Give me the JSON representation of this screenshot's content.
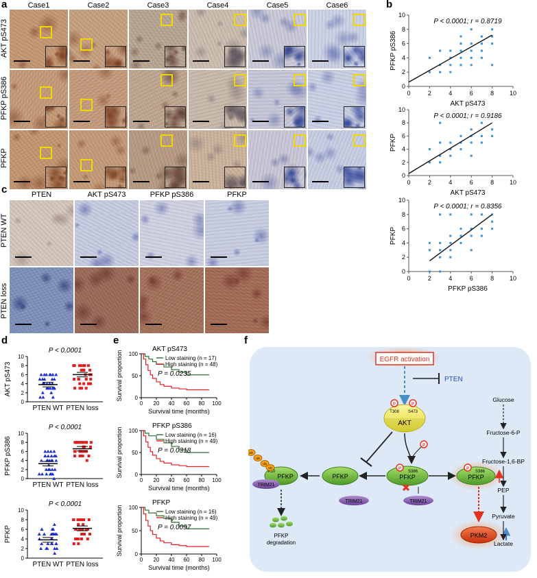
{
  "panels": {
    "a": "a",
    "b": "b",
    "c": "c",
    "d": "d",
    "e": "e",
    "f": "f"
  },
  "panel_a": {
    "columns": [
      "Case1",
      "Case2",
      "Case3",
      "Case4",
      "Case5",
      "Case6"
    ],
    "rows": [
      "AKT pS473",
      "PFKP pS386",
      "PFKP"
    ]
  },
  "panel_c": {
    "columns": [
      "PTEN",
      "AKT pS473",
      "PFKP pS386",
      "PFKP"
    ],
    "rows": [
      "PTEN WT",
      "PTEN loss"
    ]
  },
  "chart_data": [
    {
      "type": "scatter",
      "panel": "b1",
      "xlabel": "AKT pS473",
      "ylabel": "PFKP pS386",
      "annotation": "P < 0.0001; r = 0.8719",
      "xlim": [
        0,
        10
      ],
      "ylim": [
        0,
        10
      ],
      "x": [
        2,
        2,
        3,
        3,
        3,
        4,
        4,
        4,
        4,
        5,
        5,
        5,
        5,
        5,
        6,
        6,
        6,
        6,
        6,
        7,
        7,
        7,
        7,
        8,
        8,
        8,
        8
      ],
      "y": [
        2,
        4,
        2,
        3,
        5,
        2,
        3,
        4,
        5,
        3,
        4,
        5,
        6,
        7,
        3,
        4,
        5,
        6,
        8,
        4,
        5,
        6,
        7,
        3,
        6,
        7,
        8
      ],
      "fit": [
        [
          0,
          0.6
        ],
        [
          8,
          7.2
        ]
      ]
    },
    {
      "type": "scatter",
      "panel": "b2",
      "xlabel": "AKT pS473",
      "ylabel": "PFKP",
      "annotation": "P < 0.0001; r = 0.9186",
      "xlim": [
        0,
        10
      ],
      "ylim": [
        0,
        10
      ],
      "x": [
        2,
        2,
        3,
        3,
        3,
        3,
        4,
        4,
        4,
        5,
        5,
        5,
        6,
        6,
        6,
        6,
        7,
        7,
        7,
        8,
        8
      ],
      "y": [
        2,
        4,
        2,
        3,
        5,
        8,
        3,
        4,
        5,
        4,
        5,
        6,
        3,
        5,
        6,
        7,
        5,
        6,
        8,
        6,
        7
      ],
      "fit": [
        [
          0,
          0.3
        ],
        [
          8,
          8.0
        ]
      ]
    },
    {
      "type": "scatter",
      "panel": "b3",
      "xlabel": "PFKP pS386",
      "ylabel": "PFKP",
      "annotation": "P < 0.0001; r = 0.8356",
      "xlim": [
        0,
        10
      ],
      "ylim": [
        0,
        10
      ],
      "x": [
        2,
        2,
        2,
        3,
        3,
        3,
        3,
        3,
        4,
        4,
        4,
        4,
        4,
        5,
        5,
        5,
        6,
        6,
        6,
        6,
        7,
        7,
        7,
        8,
        8,
        8
      ],
      "y": [
        0,
        3,
        4,
        0,
        2,
        3,
        4,
        8,
        2,
        3,
        4,
        5,
        8,
        4,
        5,
        6,
        3,
        5,
        6,
        8,
        5,
        6,
        8,
        6,
        7,
        8
      ],
      "fit": [
        [
          2,
          1.5
        ],
        [
          8,
          8.0
        ]
      ]
    },
    {
      "type": "scatter",
      "panel": "d1",
      "ylabel": "AKT pS473",
      "annotation": "P < 0.0001",
      "categories": [
        "PTEN WT",
        "PTEN loss"
      ],
      "ylim": [
        0,
        10
      ],
      "yticks": [
        0,
        2,
        4,
        6,
        8,
        10
      ],
      "means": [
        3.8,
        6.0
      ]
    },
    {
      "type": "scatter",
      "panel": "d2",
      "ylabel": "PFKP pS386",
      "annotation": "P < 0.0001",
      "categories": [
        "PTEN WT",
        "PTEN loss"
      ],
      "ylim": [
        0,
        10
      ],
      "yticks": [
        0,
        2,
        4,
        6,
        8,
        10
      ],
      "means": [
        3.3,
        6.6
      ]
    },
    {
      "type": "scatter",
      "panel": "d3",
      "ylabel": "PFKP",
      "annotation": "P < 0.0001",
      "categories": [
        "PTEN WT",
        "PTEN loss"
      ],
      "ylim": [
        0,
        10
      ],
      "yticks": [
        0,
        2,
        4,
        6,
        8,
        10
      ],
      "means": [
        3.8,
        6.2
      ]
    },
    {
      "type": "line",
      "panel": "e1",
      "title": "AKT pS473",
      "xlabel": "Survival time (months)",
      "ylabel": "Survival proportion",
      "annotation": "P = 0.0235",
      "xlim": [
        0,
        100
      ],
      "ylim": [
        0,
        100
      ],
      "xticks": [
        0,
        20,
        40,
        60,
        80,
        100
      ],
      "yticks": [
        0,
        50,
        100
      ],
      "series": [
        {
          "name": "Low staining (n = 17)",
          "color": "#2e6b2e",
          "x": [
            0,
            5,
            10,
            15,
            20,
            30,
            40,
            50,
            60,
            90
          ],
          "y": [
            100,
            94,
            88,
            82,
            76,
            70,
            64,
            58,
            52,
            52
          ]
        },
        {
          "name": "High staining (n = 48)",
          "color": "#e02020",
          "x": [
            0,
            3,
            6,
            9,
            12,
            15,
            20,
            25,
            30,
            40,
            50,
            60,
            90
          ],
          "y": [
            100,
            88,
            75,
            62,
            52,
            44,
            36,
            30,
            26,
            22,
            20,
            18,
            18
          ]
        }
      ]
    },
    {
      "type": "line",
      "panel": "e2",
      "title": "PFKP pS386",
      "xlabel": "Survival time (months)",
      "ylabel": "Survival proportion",
      "annotation": "P = 0.0318",
      "xlim": [
        0,
        100
      ],
      "ylim": [
        0,
        100
      ],
      "xticks": [
        0,
        20,
        40,
        60,
        80,
        100
      ],
      "yticks": [
        0,
        50,
        100
      ],
      "series": [
        {
          "name": "Low staining (n = 16)",
          "color": "#2e6b2e",
          "x": [
            0,
            5,
            10,
            20,
            30,
            40,
            50,
            60,
            90
          ],
          "y": [
            100,
            94,
            88,
            80,
            72,
            64,
            56,
            50,
            50
          ]
        },
        {
          "name": "High staining (n = 49)",
          "color": "#e02020",
          "x": [
            0,
            3,
            6,
            9,
            12,
            15,
            20,
            25,
            30,
            40,
            50,
            60,
            90
          ],
          "y": [
            100,
            88,
            74,
            62,
            52,
            44,
            36,
            30,
            26,
            22,
            20,
            18,
            18
          ]
        }
      ]
    },
    {
      "type": "line",
      "panel": "e3",
      "title": "PFKP",
      "xlabel": "Survival time (months)",
      "ylabel": "Survival proportion",
      "annotation": "P = 0.0097",
      "xlim": [
        0,
        100
      ],
      "ylim": [
        0,
        100
      ],
      "xticks": [
        0,
        20,
        40,
        60,
        80,
        100
      ],
      "yticks": [
        0,
        50,
        100
      ],
      "series": [
        {
          "name": "Low staining (n = 16)",
          "color": "#2e6b2e",
          "x": [
            0,
            5,
            10,
            20,
            30,
            40,
            50,
            60,
            90
          ],
          "y": [
            100,
            94,
            88,
            82,
            76,
            68,
            60,
            54,
            54
          ]
        },
        {
          "name": "High staining (n = 49)",
          "color": "#e02020",
          "x": [
            0,
            3,
            6,
            9,
            12,
            15,
            20,
            25,
            30,
            40,
            50,
            60,
            90
          ],
          "y": [
            100,
            86,
            72,
            60,
            50,
            42,
            34,
            28,
            24,
            20,
            18,
            16,
            16
          ]
        }
      ]
    }
  ],
  "panel_f": {
    "egfr": "EGFR activation",
    "pten": "PTEN",
    "akt": "AKT",
    "t308": "T308",
    "s473": "S473",
    "p": "P",
    "pfkp": "PFKP",
    "s386": "S386",
    "k10": "K10",
    "ub": "Ub",
    "trim21": "TRIM21",
    "pkm2": "PKM2",
    "degradation_line1": "PFKP",
    "degradation_line2": "degradation",
    "glycolysis": [
      "Glucose",
      "Fructose-6-P",
      "Fructose-1,6-BP",
      "PEP",
      "Pyruvate",
      "Lactate"
    ],
    "colors": {
      "background": "#dde9f7",
      "pfkp": "#7dc641",
      "akt": "#f2ee6e",
      "trim21": "#8b5fb3",
      "pkm2": "#e2461d",
      "egfr_glow": "#f6a26a",
      "phospho": "#e0331f"
    }
  }
}
